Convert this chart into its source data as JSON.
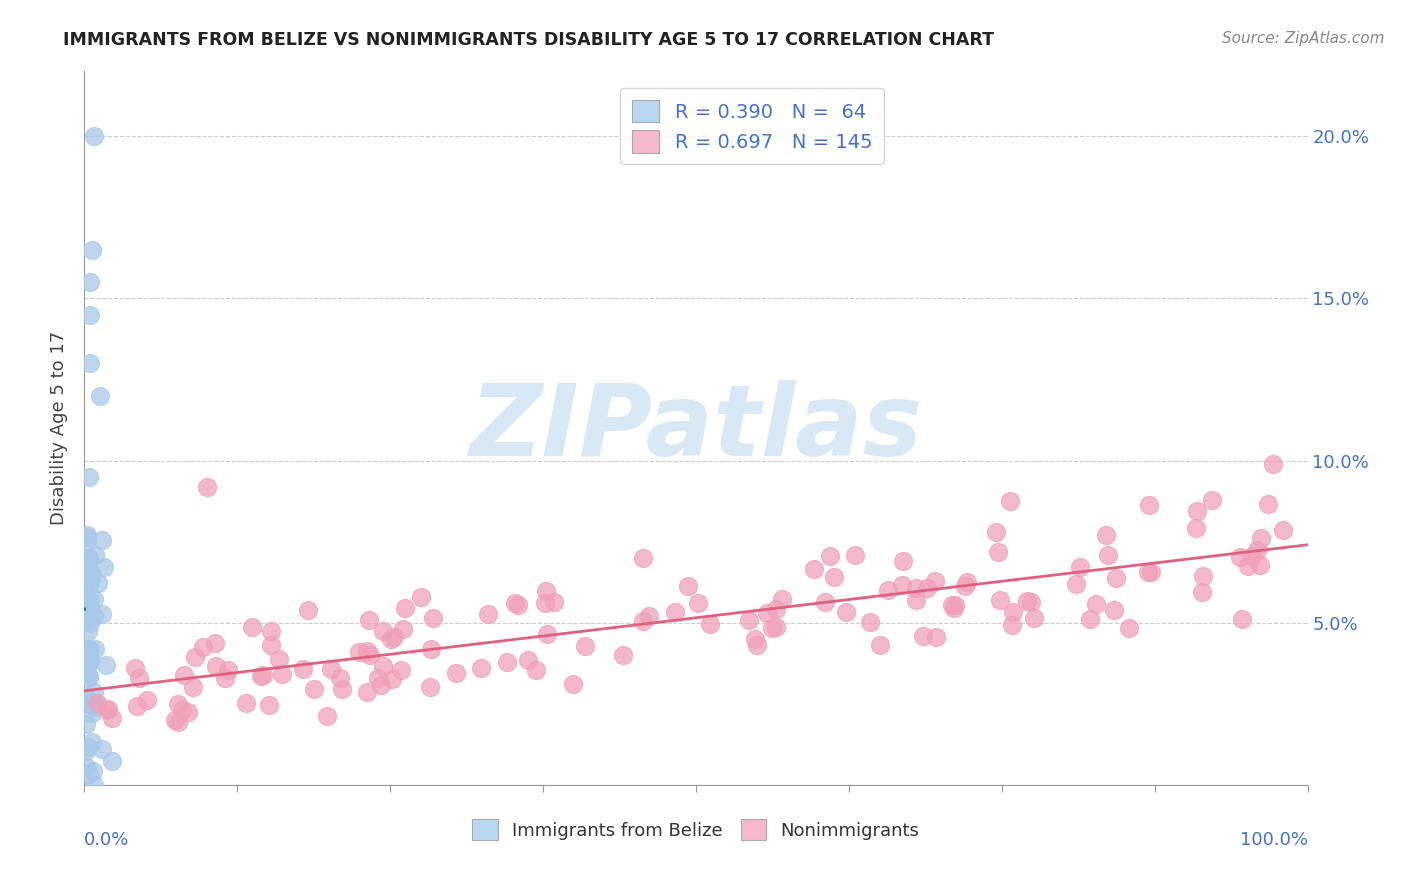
{
  "title": "IMMIGRANTS FROM BELIZE VS NONIMMIGRANTS DISABILITY AGE 5 TO 17 CORRELATION CHART",
  "source": "Source: ZipAtlas.com",
  "ylabel": "Disability Age 5 to 17",
  "xlim": [
    0.0,
    1.0
  ],
  "ylim": [
    0.0,
    0.22
  ],
  "ytick_values": [
    0.0,
    0.05,
    0.1,
    0.15,
    0.2
  ],
  "ytick_right_labels": [
    "",
    "5.0%",
    "10.0%",
    "15.0%",
    "20.0%"
  ],
  "xtick_values": [
    0.0,
    0.125,
    0.25,
    0.375,
    0.5,
    0.625,
    0.75,
    0.875,
    1.0
  ],
  "blue_R": 0.39,
  "blue_N": 64,
  "pink_R": 0.697,
  "pink_N": 145,
  "blue_scatter_color": "#a8c8e8",
  "blue_line_color": "#1a5fa0",
  "blue_dash_color": "#90b8d8",
  "pink_scatter_color": "#f0a0b8",
  "pink_line_color": "#e06080",
  "legend_blue_fill": "#b8d8f0",
  "legend_pink_fill": "#f5b8cc",
  "watermark_color": "#d8e8f4",
  "grid_color": "#cccccc",
  "axis_color": "#999999",
  "text_color": "#4472C4",
  "title_color": "#222222",
  "source_color": "#888888",
  "ylabel_color": "#444444"
}
